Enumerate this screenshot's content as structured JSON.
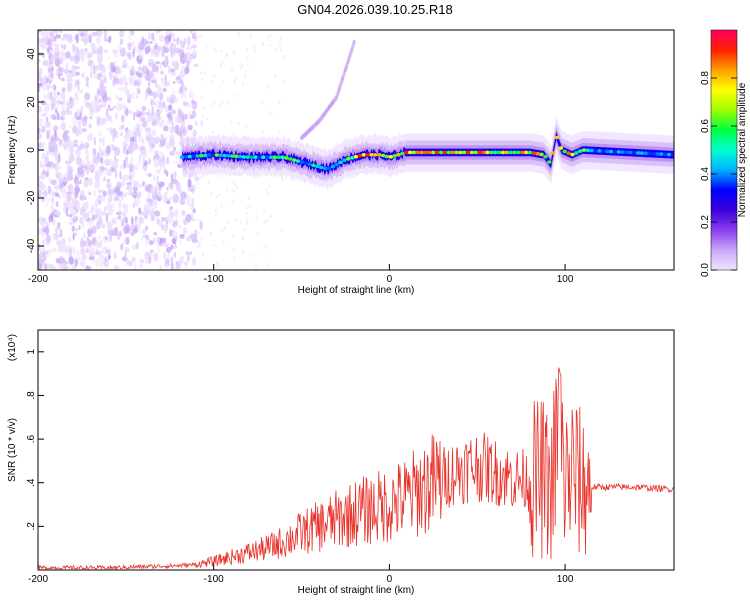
{
  "title": "GN04.2026.039.10.25.R18",
  "chart_data": [
    {
      "type": "heatmap",
      "xlabel": "Height of straight line (km)",
      "ylabel": "Frequency (Hz)",
      "xlim": [
        -200,
        162
      ],
      "ylim": [
        -50,
        50
      ],
      "xticks": [
        -200,
        -100,
        0,
        100
      ],
      "yticks": [
        -40,
        -20,
        0,
        20,
        40
      ],
      "grid": false,
      "colorbar": {
        "label": "Normalized spectral amplitude",
        "range": [
          0,
          1
        ],
        "ticks": [
          0.0,
          0.2,
          0.4,
          0.6,
          0.8
        ],
        "colormap": [
          "#f0e6ff",
          "#c9a6f5",
          "#8a3cf0",
          "#3a00d8",
          "#0000ff",
          "#00b0ff",
          "#00ffd0",
          "#00ff40",
          "#a0ff00",
          "#ffff00",
          "#ffa000",
          "#ff2000",
          "#ff0060"
        ]
      },
      "noise_region_x": [
        -200,
        -110
      ],
      "signal_track": {
        "x": [
          -118,
          -100,
          -80,
          -60,
          -45,
          -35,
          -25,
          -15,
          -5,
          0,
          10,
          20,
          40,
          60,
          80,
          88,
          92,
          95,
          98,
          104,
          110,
          162
        ],
        "frequency": [
          -3,
          -2,
          -3,
          -3,
          -6,
          -8,
          -4,
          -2,
          -2,
          -3,
          -1,
          -1,
          -1,
          -1,
          -1,
          -2,
          -6,
          6,
          0,
          -2,
          0,
          -2
        ]
      },
      "secondary_track": {
        "x": [
          -50,
          -40,
          -30,
          -20
        ],
        "frequency": [
          5,
          12,
          22,
          45
        ]
      }
    },
    {
      "type": "line",
      "xlabel": "Height of straight line (km)",
      "ylabel": "SNR (10 * v/v)",
      "y_multiplier": "(x10⁴)",
      "xlim": [
        -200,
        162
      ],
      "ylim": [
        0,
        1.1
      ],
      "xticks": [
        -200,
        -100,
        0,
        100
      ],
      "yticks": [
        0.2,
        0.4,
        0.6,
        0.8,
        1.0
      ],
      "color": "#e8322a",
      "x": [
        -200,
        -180,
        -160,
        -140,
        -120,
        -110,
        -100,
        -90,
        -80,
        -70,
        -60,
        -50,
        -40,
        -30,
        -20,
        -10,
        0,
        10,
        20,
        30,
        40,
        50,
        60,
        70,
        80,
        88,
        92,
        95,
        98,
        100,
        104,
        108,
        112,
        120,
        140,
        162
      ],
      "values": [
        0.01,
        0.01,
        0.01,
        0.015,
        0.02,
        0.025,
        0.04,
        0.06,
        0.08,
        0.1,
        0.13,
        0.17,
        0.2,
        0.23,
        0.26,
        0.28,
        0.3,
        0.33,
        0.38,
        0.42,
        0.46,
        0.48,
        0.45,
        0.42,
        0.41,
        0.42,
        0.35,
        0.55,
        0.5,
        0.4,
        0.45,
        0.4,
        0.38,
        0.38,
        0.38,
        0.37
      ]
    }
  ]
}
